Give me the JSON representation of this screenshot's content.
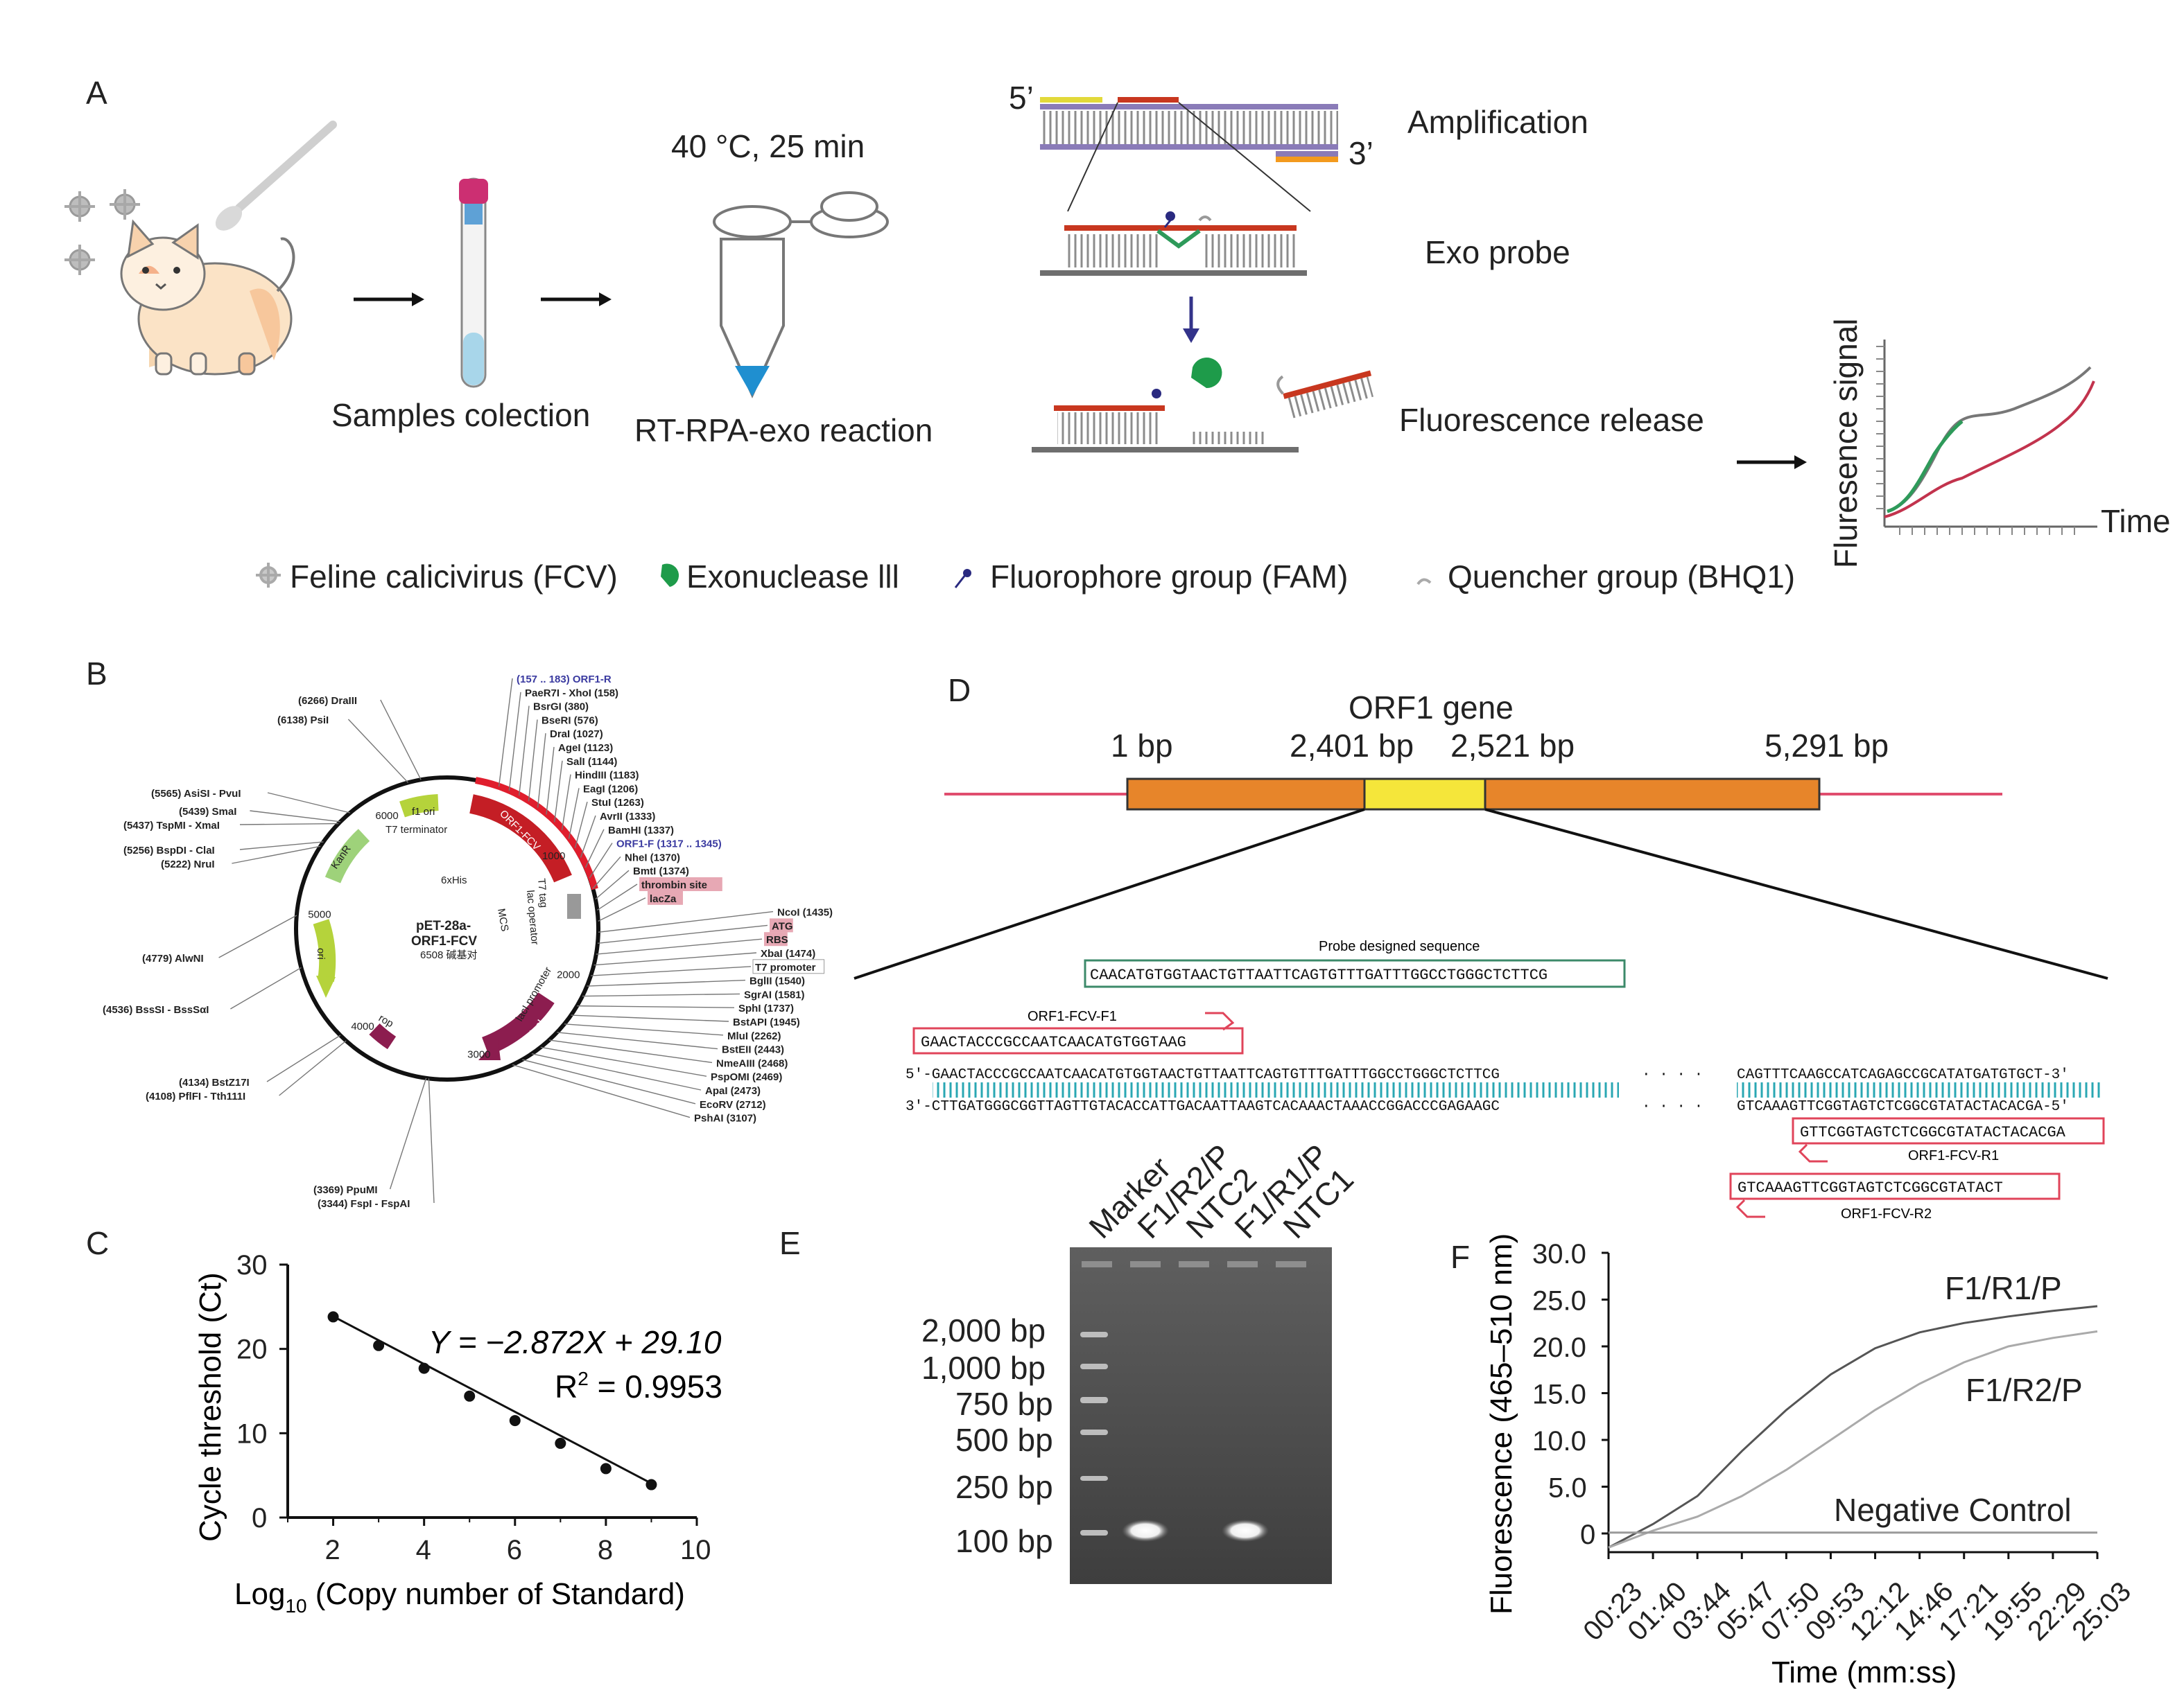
{
  "panel_a": {
    "label": "A",
    "step_samples": "Samples colection",
    "step_reaction": "RT-RPA-exo reaction",
    "reaction_condition": "40 °C, 25 min",
    "end5": "5’",
    "end3": "3’",
    "amplification": "Amplification",
    "exo_probe": "Exo probe",
    "fluorescence_release": "Fluorescence release",
    "legend": {
      "fcv": "Feline calicivirus (FCV)",
      "exo": "Exonuclease lll",
      "fam": "Fluorophore group (FAM)",
      "bhq": "Quencher group (BHQ1)"
    },
    "signal_ylabel": "Fluresence signal",
    "signal_xlabel": "Time",
    "colors": {
      "green_curve": "#2e9a5a",
      "red_curve": "#c2334d",
      "grey_curve": "#777777",
      "probe_red": "#c8371f",
      "strand_purple": "#7d6aa8",
      "orange": "#f39a1e"
    }
  },
  "panel_b": {
    "label": "B",
    "plasmid_name": "pET-28a-",
    "plasmid_name2": "ORF1-FCV",
    "plasmid_size": "6508 碱基对",
    "features": {
      "f1ori": "f1 ori",
      "t7term": "T7 terminator",
      "orf1": "ORF1-FCV",
      "his": "6xHis",
      "mcs": "MCS",
      "t7tag": "T7 tag",
      "lacop": "lac operator",
      "lacipro": "lacI promoter",
      "laci": "lacI",
      "rop": "rop",
      "ori": "ori",
      "kanr": "KanR"
    },
    "ticks": [
      "1000",
      "2000",
      "3000",
      "4000",
      "5000",
      "6000"
    ],
    "sites_right": [
      "(157 .. 183)  ORF1-R",
      "PaeR7I - XhoI  (158)",
      "BsrGI  (380)",
      "BseRI  (576)",
      "DraI  (1027)",
      "AgeI  (1123)",
      "SalI  (1144)",
      "HindIII  (1183)",
      "EagI  (1206)",
      "StuI  (1263)",
      "AvrII  (1333)",
      "BamHI  (1337)",
      "ORF1-F  (1317 .. 1345)",
      "NheI  (1370)",
      "BmtI  (1374)",
      "thrombin site",
      "lacZa",
      "NcoI  (1435)",
      "ATG",
      "RBS",
      "XbaI  (1474)",
      "T7 promoter",
      "BglII  (1540)",
      "SgrAI  (1581)",
      "SphI  (1737)",
      "BstAPI  (1945)",
      "MluI  (2262)",
      "BstEII  (2443)",
      "NmeAIII  (2468)",
      "PspOMI  (2469)",
      "ApaI  (2473)",
      "EcoRV  (2712)",
      "PshAI  (3107)"
    ],
    "sites_left": [
      "(6266)  DraIII",
      "(6138)  PsiI",
      "(5565)  AsiSI - PvuI",
      "(5439)  SmaI",
      "(5437)  TspMI - XmaI",
      "(5256)  BspDI - ClaI",
      "(5222)  NruI",
      "(4779)  AlwNI",
      "(4536)  BssSI - BssSαI",
      "(4134)  BstZ17I",
      "(4108)  PflFI - Tth111I",
      "(3369)  PpuMI",
      "(3344)  FspI - FspAI"
    ]
  },
  "panel_c": {
    "label": "C",
    "equation": "Y = −2.872X + 29.10",
    "r2_prefix": "R",
    "r2_sup": "2",
    "r2_value": " = 0.9953",
    "ylabel": "Cycle threshold (Ct)",
    "xlabel_pre": "Log",
    "xlabel_sub": "10",
    "xlabel_post": " (Copy number of Standard)",
    "chart_data": {
      "type": "scatter",
      "x": [
        2,
        3,
        4,
        5,
        6,
        7,
        8,
        9
      ],
      "y": [
        23.8,
        20.4,
        17.7,
        14.4,
        11.5,
        8.8,
        5.8,
        3.9
      ],
      "fit": {
        "slope": -2.872,
        "intercept": 29.1
      },
      "xlim": [
        1,
        10
      ],
      "ylim": [
        0,
        30
      ],
      "xticks": [
        "2",
        "4",
        "6",
        "8",
        "10"
      ],
      "yticks": [
        "0",
        "10",
        "20",
        "30"
      ]
    }
  },
  "panel_d": {
    "label": "D",
    "gene": "ORF1 gene",
    "pos1": "1 bp",
    "pos2": "2,401 bp",
    "pos3": "2,521 bp",
    "pos4": "5,291 bp",
    "probe_title": "Probe designed sequence",
    "probe_seq": "CAACATGTGGTAACTGTTAATTCAGTGTTTGATTTGGCCTGGGCTCTTCG",
    "f1_name": "ORF1-FCV-F1",
    "f1_seq": "GAACTACCCGCCAATCAACATGTGGTAAG",
    "top_strand_left": "5'-GAACTACCCGCCAATCAACATGTGGTAACTGTTAATTCAGTGTTTGATTTGGCCTGGGCTCTTCG",
    "top_dots": "· · · ·",
    "top_strand_right": "CAGTTTCAAGCCATCAGAGCCGCATATGATGTGCT-3'",
    "bot_strand_left": "3'-CTTGATGGGCGGTTAGTTGTACACCATTGACAATTAAGTCACAAACTAAACCGGACCCGAGAAGC",
    "bot_dots": "· · · ·",
    "bot_strand_right": "GTCAAAGTTCGGTAGTCTCGGCGTATACTACACGA-5'",
    "r1_seq": "GTTCGGTAGTCTCGGCGTATACTACACGA",
    "r1_name": "ORF1-FCV-R1",
    "r2_seq": "GTCAAAGTTCGGTAGTCTCGGCGTATACT",
    "r2_name": "ORF1-FCV-R2",
    "colors": {
      "gene_bar": "#e7852a",
      "highlight": "#f5e63a",
      "flank": "#e04d6e",
      "primer_box": "#e0445a",
      "probe_box": "#3c8a6a",
      "tick_teal": "#2aa7b3"
    }
  },
  "panel_e": {
    "label": "E",
    "lanes": [
      "Marker",
      "F1/R2/P",
      "NTC2",
      "F1/R1/P",
      "NTC1"
    ],
    "ladder": [
      "2,000 bp",
      "1,000 bp",
      "750 bp",
      "500 bp",
      "250 bp",
      "100 bp"
    ]
  },
  "panel_f": {
    "label": "F",
    "ylabel": "Fluorescence (465–510 nm)",
    "xlabel": "Time (mm:ss)",
    "chart_data": {
      "type": "line",
      "x": [
        "00:23",
        "01:40",
        "03:44",
        "05:47",
        "07:50",
        "09:53",
        "12:12",
        "14:46",
        "17:21",
        "19:55",
        "22:29",
        "25:03"
      ],
      "series": [
        {
          "name": "F1/R1/P",
          "values": [
            -1.5,
            1.0,
            4.0,
            8.8,
            13.2,
            17.0,
            19.8,
            21.5,
            22.5,
            23.2,
            23.8,
            24.3
          ]
        },
        {
          "name": "F1/R2/P",
          "values": [
            -1.5,
            0.3,
            1.8,
            4.0,
            6.8,
            10.0,
            13.2,
            16.0,
            18.3,
            20.0,
            20.9,
            21.6
          ]
        },
        {
          "name": "Negative Control",
          "values": [
            0.1,
            0.1,
            0.1,
            0.1,
            0.1,
            0.1,
            0.1,
            0.1,
            0.1,
            0.1,
            0.1,
            0.1
          ]
        }
      ],
      "ylim": [
        -2,
        30
      ],
      "yticks": [
        "0",
        "5.0",
        "10.0",
        "15.0",
        "20.0",
        "25.0",
        "30.0"
      ]
    }
  }
}
